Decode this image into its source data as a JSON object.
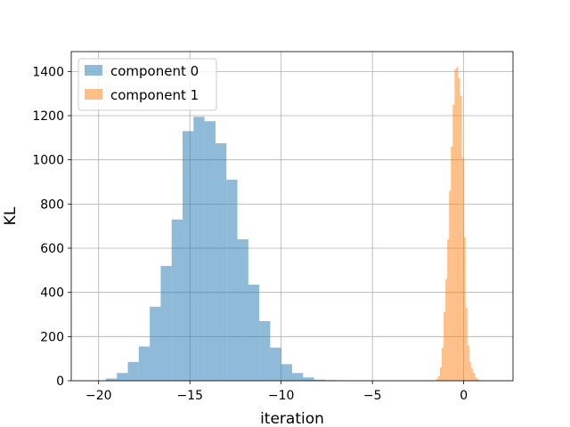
{
  "chart_data": {
    "type": "bar",
    "subtype": "histogram",
    "xlabel": "iteration",
    "ylabel": "KL",
    "xlim": [
      -21.5,
      2.7
    ],
    "ylim": [
      0,
      1490
    ],
    "xticks": [
      -20,
      -15,
      -10,
      -5,
      0
    ],
    "xtick_labels": [
      "−20",
      "−15",
      "−10",
      "−5",
      "0"
    ],
    "yticks": [
      0,
      200,
      400,
      600,
      800,
      1000,
      1200,
      1400
    ],
    "ytick_labels": [
      "0",
      "200",
      "400",
      "600",
      "800",
      "1000",
      "1200",
      "1400"
    ],
    "grid": true,
    "legend_position": "upper-left",
    "series": [
      {
        "name": "component 0",
        "color": "#1f77b4",
        "alpha": 0.5,
        "bin_edges": [
          -20.2,
          -19.6,
          -19.0,
          -18.4,
          -17.8,
          -17.2,
          -16.6,
          -16.0,
          -15.4,
          -14.8,
          -14.2,
          -13.6,
          -13.0,
          -12.4,
          -11.8,
          -11.2,
          -10.6,
          -10.0,
          -9.4,
          -8.8,
          -8.2,
          -7.6,
          -7.0,
          -6.4,
          -5.8,
          -5.2,
          -4.6
        ],
        "counts": [
          2,
          10,
          35,
          85,
          155,
          335,
          520,
          730,
          1130,
          1195,
          1175,
          1075,
          910,
          640,
          435,
          270,
          150,
          75,
          35,
          15,
          5,
          3,
          2,
          1,
          1,
          1
        ]
      },
      {
        "name": "component 1",
        "color": "#ff7f0e",
        "alpha": 0.5,
        "bin_edges": [
          -1.5,
          -1.4,
          -1.3,
          -1.2,
          -1.1,
          -1.0,
          -0.9,
          -0.8,
          -0.7,
          -0.6,
          -0.5,
          -0.4,
          -0.3,
          -0.2,
          -0.1,
          0.0,
          0.1,
          0.2,
          0.3,
          0.4,
          0.5,
          0.6,
          0.7,
          0.8,
          0.9,
          1.0
        ],
        "counts": [
          10,
          20,
          60,
          150,
          310,
          460,
          640,
          860,
          1060,
          1250,
          1410,
          1420,
          1370,
          1290,
          1010,
          650,
          330,
          160,
          85,
          55,
          35,
          15,
          8,
          4,
          2
        ]
      }
    ]
  }
}
